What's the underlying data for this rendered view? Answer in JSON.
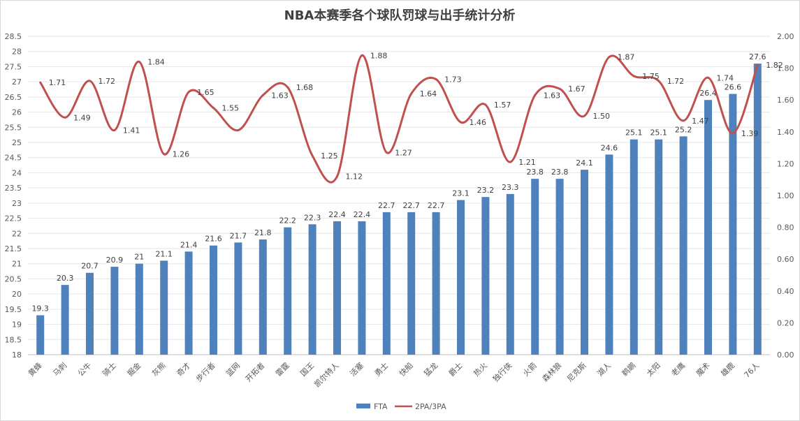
{
  "chart_data": {
    "type": "bar+line",
    "title": "NBA本赛季各个球队罚球与出手统计分析",
    "categories": [
      "黄蜂",
      "马刺",
      "公牛",
      "骑士",
      "掘金",
      "灰熊",
      "奇才",
      "步行者",
      "篮网",
      "开拓者",
      "雷霆",
      "国王",
      "凯尔特人",
      "活塞",
      "勇士",
      "快船",
      "猛龙",
      "爵士",
      "热火",
      "独行侠",
      "火箭",
      "森林狼",
      "尼克斯",
      "湖人",
      "鹈鹕",
      "太阳",
      "老鹰",
      "魔术",
      "雄鹿",
      "76人"
    ],
    "series": [
      {
        "name": "FTA",
        "type": "bar",
        "axis": "left",
        "color": "#4f81bd",
        "values": [
          19.3,
          20.3,
          20.7,
          20.9,
          21,
          21.1,
          21.4,
          21.6,
          21.7,
          21.8,
          22.2,
          22.3,
          22.4,
          22.4,
          22.7,
          22.7,
          22.7,
          23.1,
          23.2,
          23.3,
          23.8,
          23.8,
          24.1,
          24.6,
          25.1,
          25.1,
          25.2,
          26.4,
          26.6,
          27.6
        ],
        "labels": [
          "19.3",
          "20.3",
          "20.7",
          "20.9",
          "21",
          "21.1",
          "21.4",
          "21.6",
          "21.7",
          "21.8",
          "22.2",
          "22.3",
          "22.4",
          "22.4",
          "22.7",
          "22.7",
          "22.7",
          "23.1",
          "23.2",
          "23.3",
          "23.8",
          "23.8",
          "24.1",
          "24.6",
          "25.1",
          "25.1",
          "25.2",
          "26.4",
          "26.6",
          "27.6"
        ]
      },
      {
        "name": "2PA/3PA",
        "type": "line",
        "axis": "right",
        "color": "#c0504d",
        "values": [
          1.71,
          1.49,
          1.72,
          1.41,
          1.84,
          1.26,
          1.65,
          1.55,
          1.41,
          1.63,
          1.68,
          1.25,
          1.12,
          1.88,
          1.27,
          1.64,
          1.73,
          1.46,
          1.57,
          1.21,
          1.63,
          1.67,
          1.5,
          1.87,
          1.75,
          1.72,
          1.47,
          1.74,
          1.39,
          1.82
        ],
        "labels": [
          "1.71",
          "1.49",
          "1.72",
          "1.41",
          "1.84",
          "1.26",
          "1.65",
          "1.55",
          "",
          "1.63",
          "1.68",
          "1.25",
          "1.12",
          "1.88",
          "1.27",
          "1.64",
          "1.73",
          "1.46",
          "1.57",
          "1.21",
          "1.63",
          "1.67",
          "1.50",
          "1.87",
          "1.75",
          "1.72",
          "1.47",
          "1.74",
          "1.39",
          "1.82"
        ]
      }
    ],
    "y_left": {
      "min": 18,
      "max": 28.5,
      "step": 0.5
    },
    "y_right": {
      "min": 0,
      "max": 2.0,
      "step": 0.2
    },
    "y_left_ticks": [
      "18",
      "18.5",
      "19",
      "19.5",
      "20",
      "20.5",
      "21",
      "21.5",
      "22",
      "22.5",
      "23",
      "23.5",
      "24",
      "24.5",
      "25",
      "25.5",
      "26",
      "26.5",
      "27",
      "27.5",
      "28",
      "28.5"
    ],
    "y_right_ticks": [
      "0.00",
      "0.20",
      "0.40",
      "0.60",
      "0.80",
      "1.00",
      "1.20",
      "1.40",
      "1.60",
      "1.80",
      "2.00"
    ],
    "grid": true,
    "legend_position": "bottom"
  }
}
